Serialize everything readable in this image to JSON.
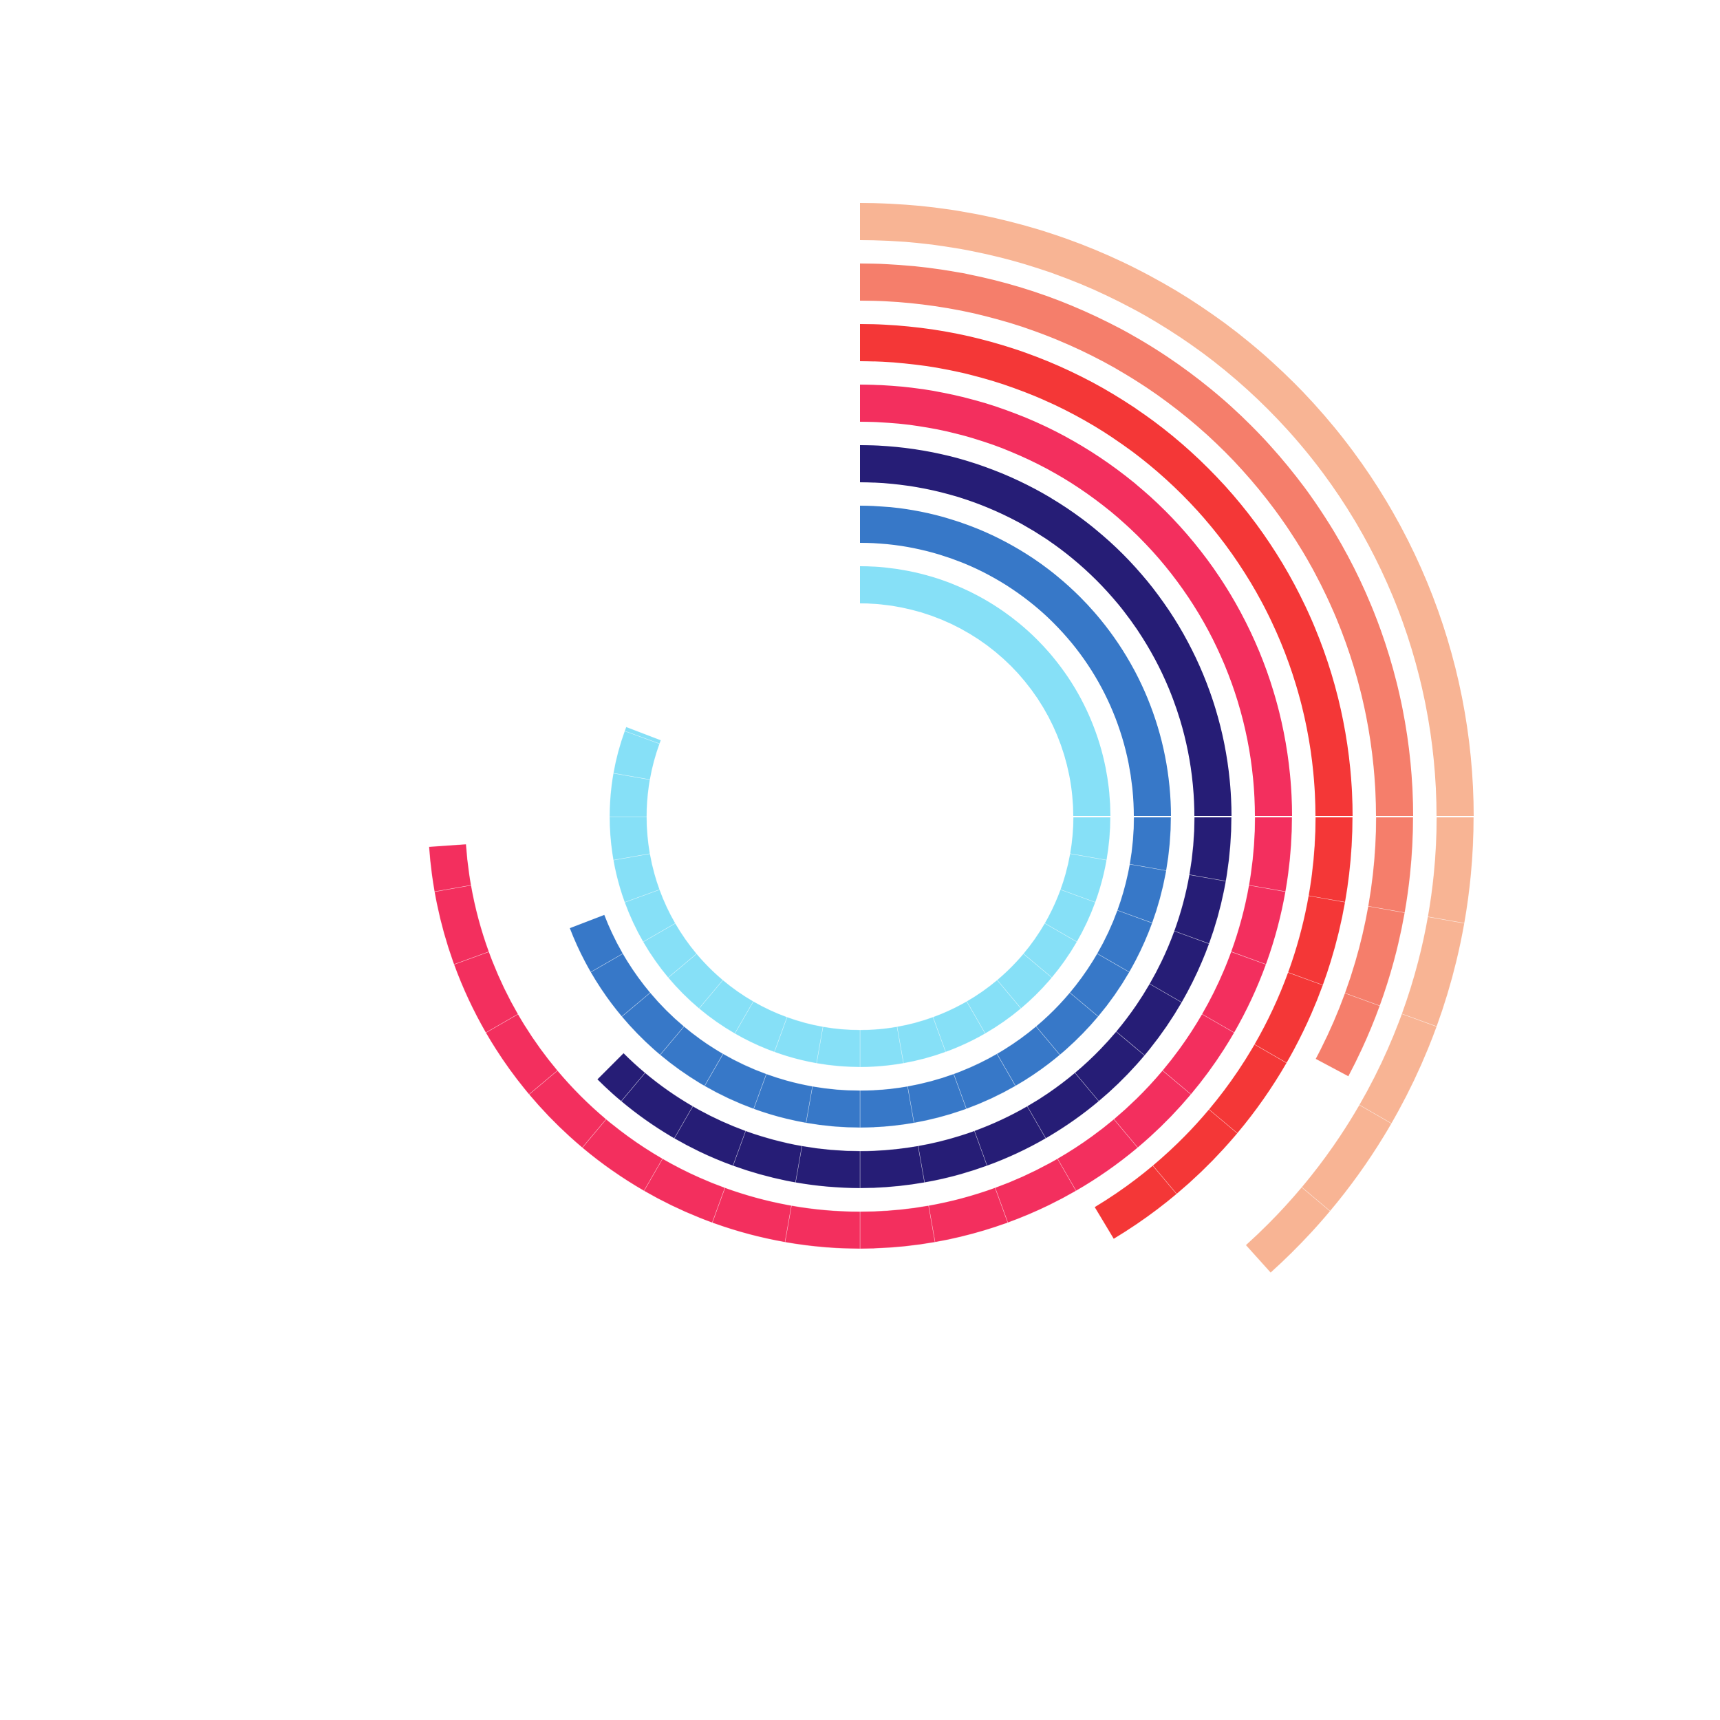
{
  "chart_data": {
    "type": "radial-bar",
    "title": "",
    "segment_step_deg": 10,
    "rings": [
      {
        "ring": 1,
        "value_deg": 291,
        "color": "#86E0F7"
      },
      {
        "ring": 2,
        "value_deg": 249,
        "color": "#3778C8"
      },
      {
        "ring": 3,
        "value_deg": 225,
        "color": "#261D76"
      },
      {
        "ring": 4,
        "value_deg": 266,
        "color": "#F32F5E"
      },
      {
        "ring": 5,
        "value_deg": 149,
        "color": "#F43737"
      },
      {
        "ring": 6,
        "value_deg": 118,
        "color": "#F57E6B"
      },
      {
        "ring": 7,
        "value_deg": 138,
        "color": "#F8B494"
      }
    ]
  }
}
